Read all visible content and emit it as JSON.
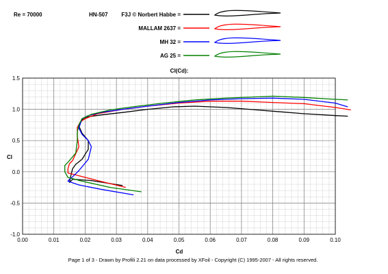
{
  "header": {
    "reynolds": "Re = 70000",
    "comparison": "HN-507"
  },
  "legend": [
    {
      "label": "F3J © Norbert Habbe =",
      "color": "#000000"
    },
    {
      "label": "MALLAM 2637 =",
      "color": "#ff0000"
    },
    {
      "label": "MH 32 =",
      "color": "#0000ff"
    },
    {
      "label": "AG 25 =",
      "color": "#008000"
    }
  ],
  "footer": "Page 1 of 3   -   Drawn by Profili 2.21 on data processed by  XFoil - Copyright (C) 1995-2007 - All rights reserved.",
  "chart_data": {
    "type": "line",
    "title": "Cl(Cd):",
    "xlabel": "Cd",
    "ylabel": "Cl",
    "xlim": [
      0,
      0.1
    ],
    "ylim": [
      -1.0,
      1.5
    ],
    "xticks": [
      "0.00",
      "0.01",
      "0.02",
      "0.03",
      "0.04",
      "0.05",
      "0.06",
      "0.07",
      "0.08",
      "0.09",
      "0.10"
    ],
    "yticks": [
      "1.5",
      "1.0",
      "0.5",
      "0.0",
      "-0.5",
      "-1.0"
    ],
    "grid": true,
    "series": [
      {
        "name": "F3J © Norbert Habbe",
        "color": "#000000",
        "points": [
          [
            0.032,
            -0.22
          ],
          [
            0.022,
            -0.14
          ],
          [
            0.016,
            -0.12
          ],
          [
            0.015,
            -0.17
          ],
          [
            0.0155,
            -0.05
          ],
          [
            0.016,
            0.05
          ],
          [
            0.017,
            0.12
          ],
          [
            0.019,
            0.2
          ],
          [
            0.021,
            0.36
          ],
          [
            0.021,
            0.5
          ],
          [
            0.019,
            0.62
          ],
          [
            0.018,
            0.73
          ],
          [
            0.019,
            0.83
          ],
          [
            0.021,
            0.88
          ],
          [
            0.025,
            0.91
          ],
          [
            0.032,
            0.95
          ],
          [
            0.04,
            1.0
          ],
          [
            0.048,
            1.04
          ],
          [
            0.055,
            1.05
          ],
          [
            0.065,
            1.03
          ],
          [
            0.08,
            0.97
          ],
          [
            0.09,
            0.93
          ],
          [
            0.1,
            0.9
          ],
          [
            0.104,
            0.89
          ]
        ]
      },
      {
        "name": "MALLAM 2637",
        "color": "#ff0000",
        "points": [
          [
            0.033,
            -0.25
          ],
          [
            0.024,
            -0.14
          ],
          [
            0.017,
            -0.05
          ],
          [
            0.0145,
            -0.02
          ],
          [
            0.0145,
            0.05
          ],
          [
            0.015,
            0.13
          ],
          [
            0.016,
            0.18
          ],
          [
            0.018,
            0.4
          ],
          [
            0.0175,
            0.56
          ],
          [
            0.0175,
            0.71
          ],
          [
            0.0185,
            0.8
          ],
          [
            0.02,
            0.85
          ],
          [
            0.024,
            0.93
          ],
          [
            0.032,
            1.0
          ],
          [
            0.04,
            1.05
          ],
          [
            0.05,
            1.1
          ],
          [
            0.06,
            1.13
          ],
          [
            0.07,
            1.13
          ],
          [
            0.08,
            1.11
          ],
          [
            0.09,
            1.09
          ],
          [
            0.1,
            1.03
          ],
          [
            0.105,
            0.99
          ]
        ]
      },
      {
        "name": "MH 32",
        "color": "#0000ff",
        "points": [
          [
            0.0355,
            -0.37
          ],
          [
            0.025,
            -0.28
          ],
          [
            0.018,
            -0.21
          ],
          [
            0.0145,
            -0.15
          ],
          [
            0.015,
            -0.12
          ],
          [
            0.016,
            -0.08
          ],
          [
            0.018,
            0.02
          ],
          [
            0.021,
            0.2
          ],
          [
            0.022,
            0.4
          ],
          [
            0.021,
            0.5
          ],
          [
            0.019,
            0.6
          ],
          [
            0.018,
            0.7
          ],
          [
            0.019,
            0.85
          ],
          [
            0.021,
            0.9
          ],
          [
            0.025,
            0.95
          ],
          [
            0.032,
            1.0
          ],
          [
            0.04,
            1.05
          ],
          [
            0.05,
            1.11
          ],
          [
            0.06,
            1.15
          ],
          [
            0.07,
            1.17
          ],
          [
            0.08,
            1.18
          ],
          [
            0.09,
            1.16
          ],
          [
            0.1,
            1.1
          ],
          [
            0.104,
            1.04
          ]
        ]
      },
      {
        "name": "AG 25",
        "color": "#008000",
        "points": [
          [
            0.038,
            -0.32
          ],
          [
            0.028,
            -0.25
          ],
          [
            0.019,
            -0.15
          ],
          [
            0.0145,
            -0.09
          ],
          [
            0.0135,
            0.0
          ],
          [
            0.0135,
            0.1
          ],
          [
            0.015,
            0.18
          ],
          [
            0.017,
            0.3
          ],
          [
            0.0175,
            0.5
          ],
          [
            0.0175,
            0.64
          ],
          [
            0.018,
            0.75
          ],
          [
            0.019,
            0.85
          ],
          [
            0.022,
            0.92
          ],
          [
            0.028,
            0.99
          ],
          [
            0.035,
            1.04
          ],
          [
            0.045,
            1.1
          ],
          [
            0.055,
            1.15
          ],
          [
            0.065,
            1.18
          ],
          [
            0.075,
            1.2
          ],
          [
            0.08,
            1.21
          ],
          [
            0.09,
            1.19
          ],
          [
            0.1,
            1.16
          ],
          [
            0.104,
            1.15
          ]
        ]
      }
    ]
  }
}
